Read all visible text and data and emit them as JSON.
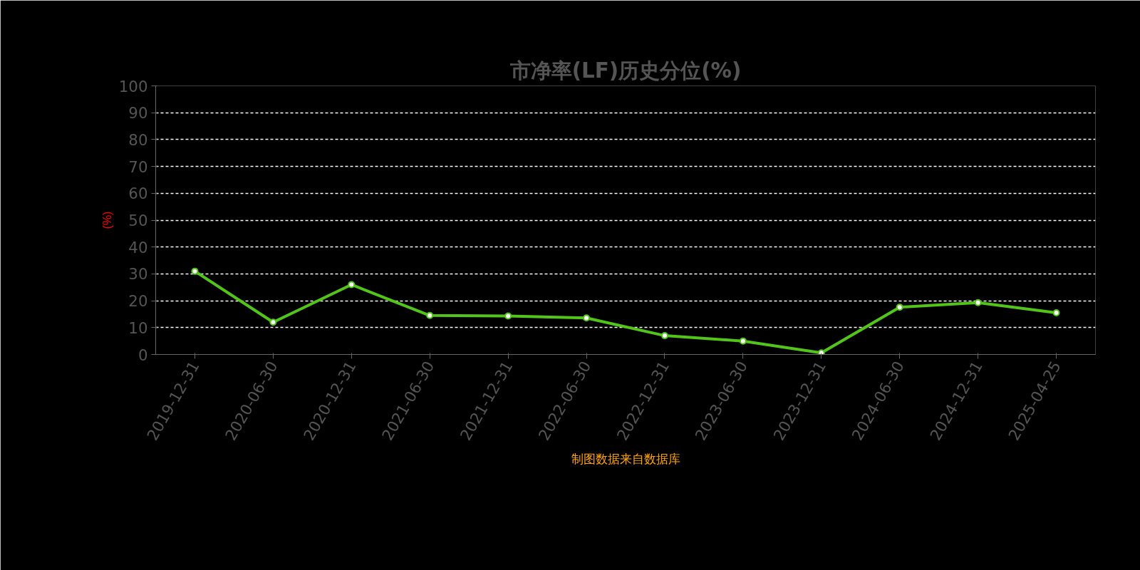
{
  "chart_data": {
    "type": "line",
    "title": "市净率(LF)历史分位(%)",
    "ylabel": "(%)",
    "categories": [
      "2019-12-31",
      "2020-06-30",
      "2020-12-31",
      "2021-06-30",
      "2021-12-31",
      "2022-06-30",
      "2022-12-31",
      "2023-06-30",
      "2023-12-31",
      "2024-06-30",
      "2024-12-31",
      "2025-04-25"
    ],
    "series": [
      {
        "color": "#52c41a",
        "values": [
          31,
          12,
          26,
          14.5,
          14.3,
          13.6,
          7,
          5,
          0.6,
          17.6,
          19.3,
          15.5
        ]
      }
    ],
    "ylim": [
      0,
      100
    ],
    "yticks": [
      0,
      10,
      20,
      30,
      40,
      50,
      60,
      70,
      80,
      90,
      100
    ],
    "grid": "y",
    "marker": "circle",
    "line_style": "solid",
    "annotations": [
      "制图数据来自数据库"
    ]
  }
}
